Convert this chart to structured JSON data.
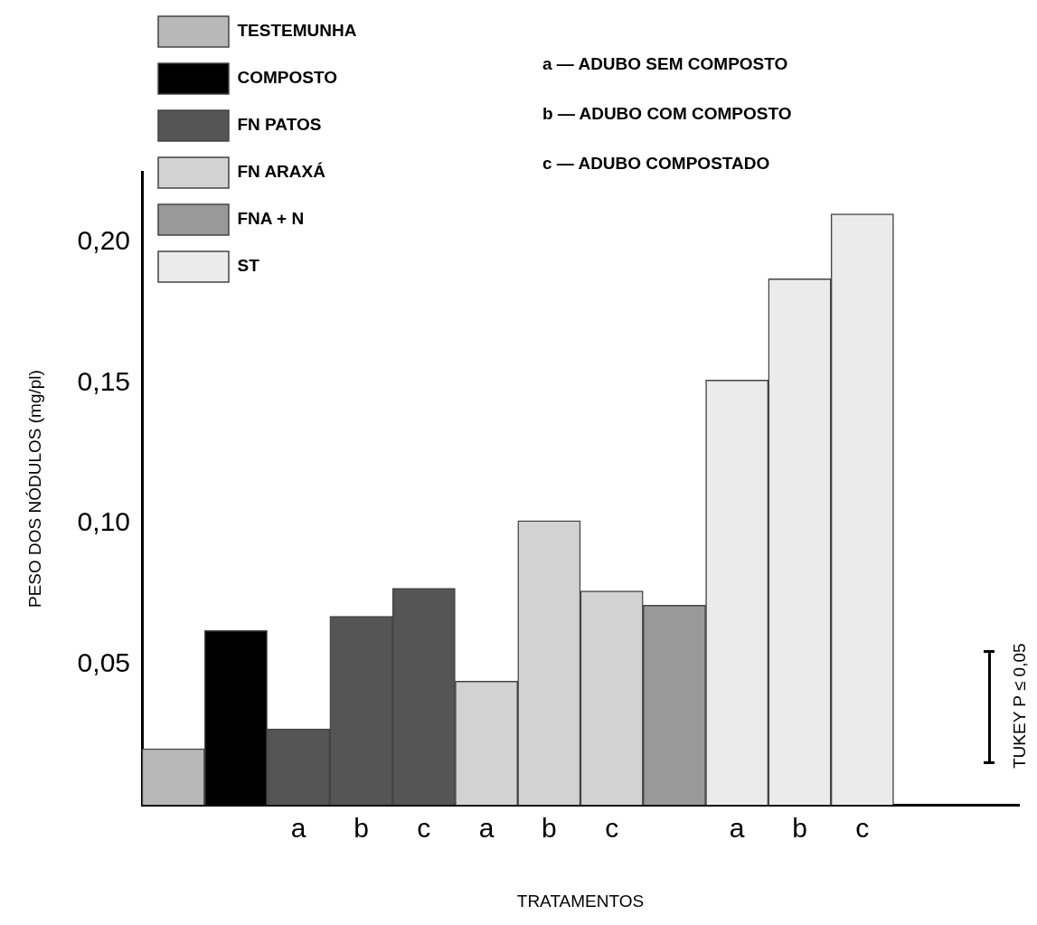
{
  "chart_data": {
    "type": "bar",
    "xlabel": "TRATAMENTOS",
    "ylabel": "PESO DOS NÓDULOS (mg/pl)",
    "categories": [
      null,
      null,
      "a",
      "b",
      "c",
      "a",
      "b",
      "c",
      null,
      "a",
      "b",
      "c",
      null,
      null
    ],
    "series": [
      {
        "name": "TESTEMUNHA",
        "color": "#b8b8b8",
        "values": [
          0.02,
          null,
          null,
          null,
          null,
          null,
          null,
          null,
          null,
          null,
          null,
          null,
          null,
          null
        ]
      },
      {
        "name": "COMPOSTO",
        "color": "#000000",
        "values": [
          null,
          0.062,
          null,
          null,
          null,
          null,
          null,
          null,
          null,
          null,
          null,
          null,
          null,
          null
        ]
      },
      {
        "name": "FN PATOS",
        "color": "#555555",
        "values": [
          null,
          null,
          0.027,
          0.067,
          0.077,
          null,
          null,
          null,
          null,
          null,
          null,
          null,
          null,
          null
        ]
      },
      {
        "name": "FN ARAXÁ",
        "color": "#d2d2d2",
        "values": [
          null,
          null,
          null,
          null,
          null,
          0.044,
          0.101,
          0.076,
          null,
          null,
          null,
          null,
          null,
          null
        ]
      },
      {
        "name": "FNA + N",
        "color": "#999999",
        "values": [
          null,
          null,
          null,
          null,
          null,
          null,
          null,
          null,
          0.071,
          null,
          null,
          null,
          null,
          null
        ]
      },
      {
        "name": "ST",
        "color": "#ebebeb",
        "values": [
          null,
          null,
          null,
          null,
          null,
          null,
          null,
          null,
          null,
          0.151,
          0.187,
          0.21,
          null,
          null
        ]
      }
    ],
    "ylim": [
      0,
      0.225
    ],
    "yticks": [
      {
        "value": 0.05,
        "label": "0,05"
      },
      {
        "value": 0.1,
        "label": "0,10"
      },
      {
        "value": 0.15,
        "label": "0,15"
      },
      {
        "value": 0.2,
        "label": "0,20"
      }
    ],
    "legend": "top left",
    "annotations": [
      "a — ADUBO SEM COMPOSTO",
      "b — ADUBO COM COMPOSTO",
      "c — ADUBO COMPOSTADO",
      "TUKEY P ≤ 0,05"
    ]
  }
}
